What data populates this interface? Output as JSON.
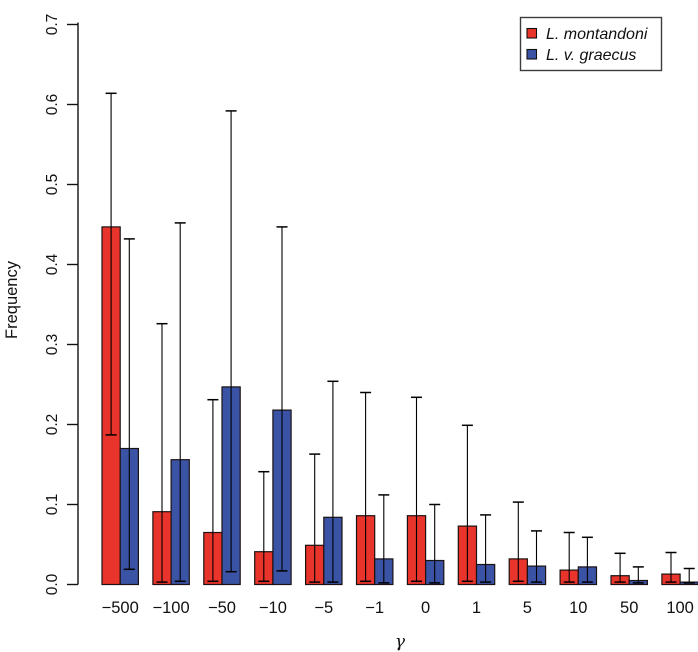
{
  "chart_data": {
    "type": "bar",
    "title": "",
    "xlabel": "γ",
    "ylabel": "Frequency",
    "categories": [
      "−500",
      "−100",
      "−50",
      "−10",
      "−5",
      "−1",
      "0",
      "1",
      "5",
      "10",
      "50",
      "100"
    ],
    "yticks": [
      "0.0",
      "0.1",
      "0.2",
      "0.3",
      "0.4",
      "0.5",
      "0.6",
      "0.7"
    ],
    "ylim": [
      0,
      0.7
    ],
    "grid": false,
    "error_bars": true,
    "legend_position": "top-right",
    "series": [
      {
        "name": "L. montandoni",
        "color": "#e8342a",
        "values": [
          0.447,
          0.091,
          0.065,
          0.041,
          0.049,
          0.086,
          0.086,
          0.073,
          0.032,
          0.018,
          0.011,
          0.013
        ],
        "err_low": [
          0.187,
          0.003,
          0.004,
          0.004,
          0.003,
          0.004,
          0.004,
          0.004,
          0.004,
          0.003,
          0.003,
          0.003
        ],
        "err_high": [
          0.614,
          0.326,
          0.231,
          0.141,
          0.163,
          0.24,
          0.234,
          0.199,
          0.103,
          0.065,
          0.039,
          0.04
        ]
      },
      {
        "name": "L. v. graecus",
        "color": "#3a53a4",
        "values": [
          0.17,
          0.156,
          0.247,
          0.218,
          0.084,
          0.032,
          0.03,
          0.025,
          0.023,
          0.022,
          0.005,
          0.003
        ],
        "err_low": [
          0.019,
          0.004,
          0.016,
          0.017,
          0.003,
          0.002,
          0.002,
          0.003,
          0.003,
          0.003,
          0.002,
          0.002
        ],
        "err_high": [
          0.432,
          0.452,
          0.592,
          0.447,
          0.254,
          0.112,
          0.1,
          0.087,
          0.067,
          0.059,
          0.022,
          0.02
        ]
      }
    ]
  }
}
